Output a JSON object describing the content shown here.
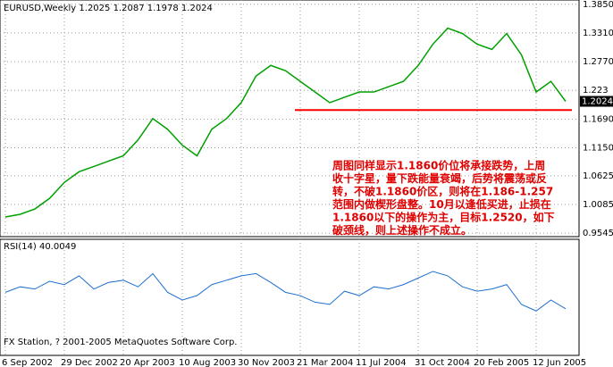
{
  "chart_data": {
    "type": "line",
    "title": "EURUSD,Weekly  1.2025 1.2087 1.1978 1.2024",
    "categories": [
      "6 Sep 2002",
      null,
      null,
      null,
      "29 Dec 2002",
      null,
      null,
      null,
      "20 Apr 2003",
      null,
      null,
      null,
      "10 Aug 2003",
      null,
      null,
      null,
      "30 Nov 2003",
      null,
      null,
      null,
      "21 Mar 2004",
      null,
      null,
      null,
      "11 Jul 2004",
      null,
      null,
      null,
      "31 Oct 2004",
      null,
      null,
      null,
      "20 Feb 2005",
      null,
      null,
      null,
      "12 Jun 2005",
      null,
      null
    ],
    "series": [
      {
        "color": "#00a000",
        "values": [
          0.985,
          0.99,
          1.0,
          1.02,
          1.05,
          1.07,
          1.08,
          1.09,
          1.1,
          1.13,
          1.17,
          1.15,
          1.12,
          1.1,
          1.15,
          1.17,
          1.2,
          1.25,
          1.27,
          1.26,
          1.24,
          1.22,
          1.2,
          1.21,
          1.22,
          1.22,
          1.23,
          1.24,
          1.27,
          1.31,
          1.34,
          1.33,
          1.31,
          1.3,
          1.33,
          1.29,
          1.22,
          1.24,
          1.2024
        ]
      }
    ],
    "ylim": [
      0.948,
      1.393
    ],
    "yticks": [
      {
        "value": 1.385,
        "label": "1.3850"
      },
      {
        "value": 1.331,
        "label": "1.3310"
      },
      {
        "value": 1.277,
        "label": "1.2770"
      },
      1.223,
      {
        "value": 1.169,
        "label": "1.1690"
      },
      {
        "value": 1.115,
        "label": "1.1150"
      },
      1.0625,
      1.0085,
      0.9545
    ],
    "last_price": 1.2024,
    "levels": [
      1.186
    ],
    "level_color": "#ff0000",
    "grid": true,
    "annotation": [
      "周图同样显示1.1860价位将承接跌势，上周",
      "收十字星，量下跌能量衰竭，后势将震荡或反",
      "转，不破1.1860价区，则将在1.186-1.257",
      "范围内做楔形盘整。10月以逢低买进，止损在",
      "1.1860以下的操作为主，目标1.2520，如下",
      "破颈线，则上述操作不成立。"
    ],
    "rsi": {
      "label": "RSI(14) 40.0049",
      "color": "#1e6fd0",
      "ylim": [
        0,
        100
      ],
      "values": [
        55,
        60,
        58,
        65,
        62,
        70,
        58,
        64,
        66,
        60,
        72,
        55,
        48,
        52,
        62,
        66,
        70,
        72,
        64,
        55,
        52,
        46,
        44,
        56,
        52,
        60,
        58,
        62,
        68,
        74,
        70,
        60,
        56,
        58,
        62,
        44,
        38,
        48,
        40.0049
      ]
    },
    "footer": "FX Station, ? 2001-2005 MetaQuotes Software Corp."
  }
}
